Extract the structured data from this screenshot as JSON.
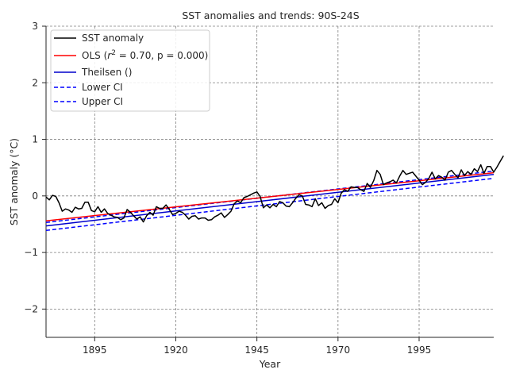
{
  "chart_data": {
    "type": "line",
    "title": "SST anomalies and trends: 90S-24S",
    "xlabel": "Year",
    "ylabel": "SST anomaly (°C)",
    "xlim": [
      1880,
      2018
    ],
    "ylim": [
      -2.5,
      3
    ],
    "grid": true,
    "legend_position": "top-left",
    "xticks": [
      1895,
      1920,
      1945,
      1970,
      1995
    ],
    "yticks": [
      -2,
      -1,
      0,
      1,
      2,
      3
    ],
    "xtick_labels": [
      "1895",
      "1920",
      "1945",
      "1970",
      "1995"
    ],
    "ytick_labels": [
      "−2",
      "−1",
      "0",
      "1",
      "2",
      "3"
    ],
    "legend": [
      {
        "label": "SST anomaly",
        "color": "#000000",
        "dash": "solid"
      },
      {
        "label_pre": "OLS (",
        "label_math": "r",
        "label_sup": "2",
        "label_post": " = 0.70, p = 0.000)",
        "color": "#ff0000",
        "dash": "solid"
      },
      {
        "label": "Theilsen ()",
        "color": "#0000cc",
        "dash": "solid"
      },
      {
        "label": "Lower CI",
        "color": "#0000ff",
        "dash": "dashed"
      },
      {
        "label": "Upper CI",
        "color": "#0000ff",
        "dash": "dashed"
      }
    ],
    "series": [
      {
        "name": "SST anomaly",
        "color": "#000000",
        "x_start": 1880,
        "x_step": 1,
        "values": [
          -0.02,
          -0.07,
          0.01,
          -0.01,
          -0.12,
          -0.27,
          -0.23,
          -0.25,
          -0.29,
          -0.2,
          -0.23,
          -0.22,
          -0.11,
          -0.11,
          -0.26,
          -0.28,
          -0.19,
          -0.29,
          -0.23,
          -0.31,
          -0.34,
          -0.37,
          -0.38,
          -0.42,
          -0.39,
          -0.24,
          -0.29,
          -0.35,
          -0.41,
          -0.37,
          -0.46,
          -0.35,
          -0.29,
          -0.34,
          -0.19,
          -0.22,
          -0.22,
          -0.16,
          -0.24,
          -0.33,
          -0.31,
          -0.27,
          -0.29,
          -0.34,
          -0.41,
          -0.36,
          -0.35,
          -0.41,
          -0.39,
          -0.39,
          -0.43,
          -0.42,
          -0.37,
          -0.34,
          -0.3,
          -0.38,
          -0.33,
          -0.27,
          -0.14,
          -0.09,
          -0.12,
          -0.03,
          -0.01,
          0.02,
          0.05,
          0.07,
          -0.01,
          -0.21,
          -0.16,
          -0.21,
          -0.15,
          -0.19,
          -0.1,
          -0.12,
          -0.18,
          -0.19,
          -0.12,
          -0.04,
          0.02,
          0.0,
          -0.15,
          -0.16,
          -0.19,
          -0.05,
          -0.17,
          -0.12,
          -0.22,
          -0.17,
          -0.15,
          -0.05,
          -0.12,
          0.05,
          0.11,
          0.08,
          0.16,
          0.15,
          0.15,
          0.11,
          0.08,
          0.22,
          0.15,
          0.27,
          0.45,
          0.38,
          0.2,
          0.23,
          0.25,
          0.28,
          0.23,
          0.35,
          0.45,
          0.38,
          0.4,
          0.42,
          0.35,
          0.28,
          0.2,
          0.24,
          0.31,
          0.42,
          0.3,
          0.36,
          0.33,
          0.28,
          0.42,
          0.45,
          0.38,
          0.32,
          0.46,
          0.36,
          0.43,
          0.38,
          0.48,
          0.43,
          0.55,
          0.4,
          0.52,
          0.52,
          0.42,
          0.51,
          0.61,
          0.71
        ]
      },
      {
        "name": "OLS",
        "color": "#ff0000",
        "dash": "solid",
        "x": [
          1880,
          2018
        ],
        "y": [
          -0.44,
          0.41
        ]
      },
      {
        "name": "Theilsen ()",
        "color": "#0000cc",
        "dash": "solid",
        "x": [
          1880,
          2018
        ],
        "y": [
          -0.53,
          0.38
        ]
      },
      {
        "name": "Lower CI",
        "color": "#0000ff",
        "dash": "dashed",
        "x": [
          1880,
          2018
        ],
        "y": [
          -0.61,
          0.31
        ]
      },
      {
        "name": "Upper CI",
        "color": "#0000ff",
        "dash": "dashed",
        "x": [
          1880,
          2018
        ],
        "y": [
          -0.47,
          0.44
        ]
      }
    ]
  }
}
